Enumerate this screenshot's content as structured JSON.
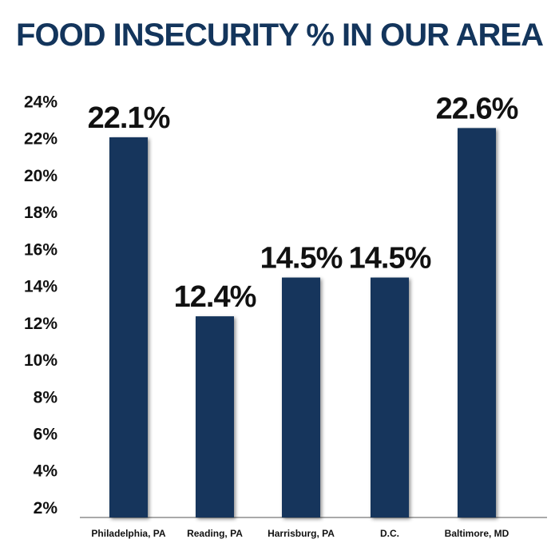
{
  "chart_data": {
    "type": "bar",
    "title": "FOOD INSECURITY % IN OUR AREA",
    "xlabel": "",
    "ylabel": "",
    "categories": [
      "Philadelphia, PA",
      "Reading, PA",
      "Harrisburg, PA",
      "D.C.",
      "Baltimore, MD"
    ],
    "values": [
      22.1,
      12.4,
      14.5,
      14.5,
      22.6
    ],
    "data_labels": [
      "22.1%",
      "12.4%",
      "14.5%",
      "14.5%",
      "22.6%"
    ],
    "y_ticks": [
      2,
      4,
      6,
      8,
      10,
      12,
      14,
      16,
      18,
      20,
      22,
      24
    ],
    "y_tick_labels": [
      "2%",
      "4%",
      "6%",
      "8%",
      "10%",
      "12%",
      "14%",
      "16%",
      "18%",
      "20%",
      "22%",
      "24%"
    ],
    "ylim": [
      1.5,
      24
    ],
    "grid": false,
    "legend": "none",
    "colors": {
      "bar": "#13355c",
      "title": "#13355c",
      "axis": "#555555",
      "text": "#111111"
    }
  }
}
